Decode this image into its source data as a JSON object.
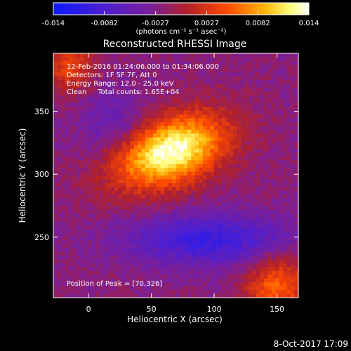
{
  "colorbar": {
    "tick_labels": [
      "-0.014",
      "-0.0082",
      "-0.0027",
      "0.0027",
      "0.0082",
      "0.014"
    ],
    "units": "(photons cm⁻² s⁻¹ asec⁻²)",
    "colors": [
      "#0a1aff",
      "#4d1fd0",
      "#7a1f9a",
      "#b0202a",
      "#ff4a00",
      "#ffb000",
      "#ffff80",
      "#ffffff"
    ]
  },
  "image": {
    "title": "Reconstructed RHESSI Image",
    "info_lines": [
      "12-Feb-2016 01:24:06.000 to 01:34:06.000",
      "Detectors: 1F 5F 7F, Att 0",
      "Energy Range: 12.0 - 25.0 keV",
      "Clean     Total counts: 1.65E+04"
    ],
    "peak_label": "Position of Peak = [70,326]"
  },
  "axes": {
    "xlabel": "Heliocentric X (arcsec)",
    "ylabel": "Heliocentric Y (arcsec)",
    "xlim": [
      -28,
      167
    ],
    "ylim": [
      202,
      396
    ],
    "x_ticks": [
      0,
      50,
      100,
      150
    ],
    "y_ticks": [
      250,
      300,
      350
    ]
  },
  "timestamp": "8-Oct-2017 17:09",
  "chart_data": {
    "type": "heatmap",
    "title": "Reconstructed RHESSI Image",
    "xlabel": "Heliocentric X (arcsec)",
    "ylabel": "Heliocentric Y (arcsec)",
    "xlim": [
      -28,
      167
    ],
    "ylim": [
      202,
      396
    ],
    "peak": [
      70,
      326
    ],
    "color_range": [
      -0.014,
      0.014
    ]
  }
}
